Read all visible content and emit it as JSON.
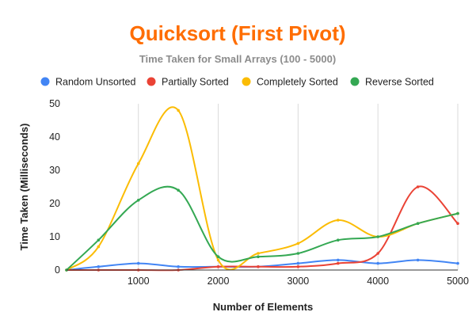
{
  "chart_data": {
    "type": "line",
    "title": "Quicksort (First Pivot)",
    "subtitle": "Time Taken for Small Arrays (100 - 5000)",
    "xlabel": "Number of Elements",
    "ylabel": "Time Taken (Milliseconds)",
    "x": [
      100,
      500,
      1000,
      1500,
      2000,
      2500,
      3000,
      3500,
      4000,
      4500,
      5000
    ],
    "xlim": [
      100,
      5000
    ],
    "ylim": [
      0,
      50
    ],
    "xticks": [
      1000,
      2000,
      3000,
      4000,
      5000
    ],
    "yticks": [
      0,
      10,
      20,
      30,
      40,
      50
    ],
    "grid": "vertical",
    "legend_position": "top",
    "smooth": true,
    "series": [
      {
        "name": "Random Unsorted",
        "color": "#4285f4",
        "values": [
          0,
          1,
          2,
          1,
          1,
          1,
          2,
          3,
          2,
          3,
          2
        ]
      },
      {
        "name": "Partially Sorted",
        "color": "#ea4335",
        "values": [
          0,
          0,
          0,
          0,
          1,
          1,
          1,
          2,
          5,
          25,
          14
        ]
      },
      {
        "name": "Completely Sorted",
        "color": "#fbbc04",
        "values": [
          0,
          7,
          32,
          48,
          3,
          5,
          8,
          15,
          10,
          14,
          17
        ]
      },
      {
        "name": "Reverse Sorted",
        "color": "#34a853",
        "values": [
          0,
          9,
          21,
          24,
          4,
          4,
          5,
          9,
          10,
          14,
          17
        ]
      }
    ]
  },
  "colors": {
    "title": "#ff6d01"
  }
}
